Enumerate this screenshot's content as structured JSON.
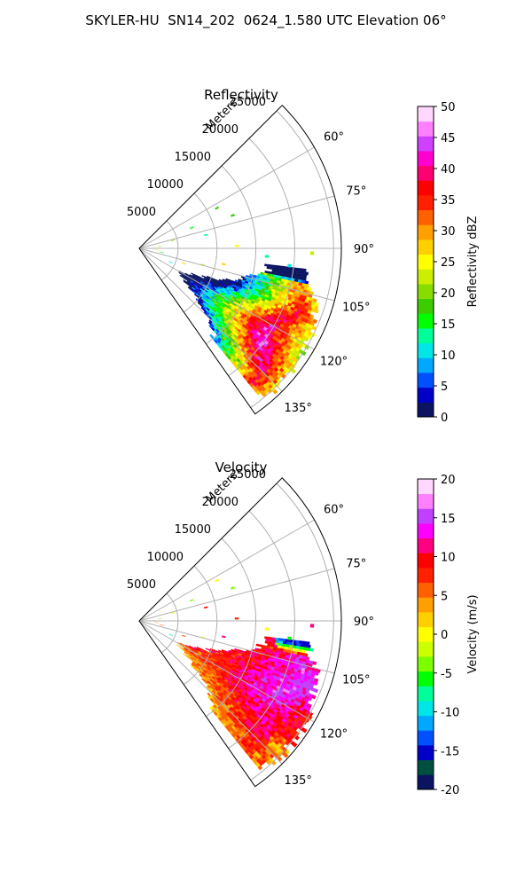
{
  "figure": {
    "title": "SKYLER-HU  SN14_202  0624_1.580 UTC Elevation 06°"
  },
  "colors": {
    "grid": "#b0b0b0",
    "axis": "#000000",
    "reflectivity_cmap": [
      "#0a1460",
      "#0000c8",
      "#0050ff",
      "#00a8ff",
      "#00e6e6",
      "#00ff9a",
      "#00ff00",
      "#3ccc00",
      "#88dd00",
      "#ccee00",
      "#ffff00",
      "#ffd000",
      "#ffa000",
      "#ff6000",
      "#ff2000",
      "#ff0000",
      "#ff0070",
      "#ff00d0",
      "#d040ff",
      "#ff80ff",
      "#ffd8ff"
    ],
    "velocity_cmap": [
      "#0a1460",
      "#005040",
      "#0000c8",
      "#0050ff",
      "#00a8ff",
      "#00e6e6",
      "#00ff9a",
      "#00ff00",
      "#7cff00",
      "#ccff00",
      "#ffff00",
      "#ffd000",
      "#ffa000",
      "#ff6000",
      "#ff2000",
      "#ff0000",
      "#ff0080",
      "#ff00ff",
      "#c040ff",
      "#ff80ff",
      "#ffd8ff"
    ]
  },
  "chart_data": [
    {
      "type": "polar-ppi",
      "title": "Reflectivity",
      "radial_label": "Meters",
      "r_ticks": [
        5000,
        10000,
        15000,
        20000,
        25000
      ],
      "r_max": 26000,
      "theta_range_deg": [
        45,
        145
      ],
      "theta_ticks": [
        60,
        75,
        90,
        105,
        120,
        135
      ],
      "theta_tick_labels": [
        "60°",
        "75°",
        "90°",
        "105°",
        "120°",
        "135°"
      ],
      "grid": true,
      "colorbar": {
        "label": "Reflectivity dBZ",
        "range": [
          0,
          50
        ],
        "ticks": [
          0,
          5,
          10,
          15,
          20,
          25,
          30,
          35,
          40,
          45,
          50
        ]
      },
      "echo_field": {
        "theta_deg": [
          98,
          102,
          106,
          110,
          114,
          118,
          122,
          126,
          130,
          134,
          138
        ],
        "r_start_m": [
          17000,
          15500,
          13500,
          11000,
          8500,
          6500,
          6000,
          7500,
          9500,
          12000,
          14500
        ],
        "r_end_m": [
          21500,
          22500,
          23500,
          24000,
          24200,
          24500,
          24800,
          25000,
          25000,
          25000,
          24500
        ],
        "core_r_m": [
          0,
          21000,
          21500,
          22000,
          21000,
          19500,
          19000,
          19500,
          20500,
          21500,
          22500
        ],
        "core_value": [
          0,
          30,
          33,
          36,
          38,
          40,
          42,
          44,
          42,
          40,
          36
        ]
      }
    },
    {
      "type": "polar-ppi",
      "title": "Velocity",
      "radial_label": "Meters",
      "r_ticks": [
        5000,
        10000,
        15000,
        20000,
        25000
      ],
      "r_max": 26000,
      "theta_range_deg": [
        45,
        145
      ],
      "theta_ticks": [
        60,
        75,
        90,
        105,
        120,
        135
      ],
      "theta_tick_labels": [
        "60°",
        "75°",
        "90°",
        "105°",
        "120°",
        "135°"
      ],
      "grid": true,
      "colorbar": {
        "label": "Velocity (m/s)",
        "range": [
          -20,
          20
        ],
        "ticks": [
          -20,
          -15,
          -10,
          -5,
          0,
          5,
          10,
          15,
          20
        ]
      },
      "echo_field": {
        "theta_deg": [
          98,
          102,
          106,
          110,
          114,
          118,
          122,
          126,
          130,
          134,
          138
        ],
        "r_start_m": [
          17000,
          15500,
          13500,
          11000,
          8500,
          6500,
          6000,
          7500,
          9500,
          12000,
          14500
        ],
        "r_end_m": [
          21500,
          22500,
          23500,
          24000,
          24200,
          24500,
          24800,
          25000,
          25000,
          25000,
          24500
        ],
        "core_r_m": [
          0,
          21000,
          21500,
          22000,
          21000,
          19500,
          19000,
          19500,
          20500,
          21500,
          22500
        ],
        "core_value": [
          0,
          13,
          14,
          15,
          15,
          14,
          13,
          12,
          11,
          10,
          8
        ]
      }
    }
  ]
}
